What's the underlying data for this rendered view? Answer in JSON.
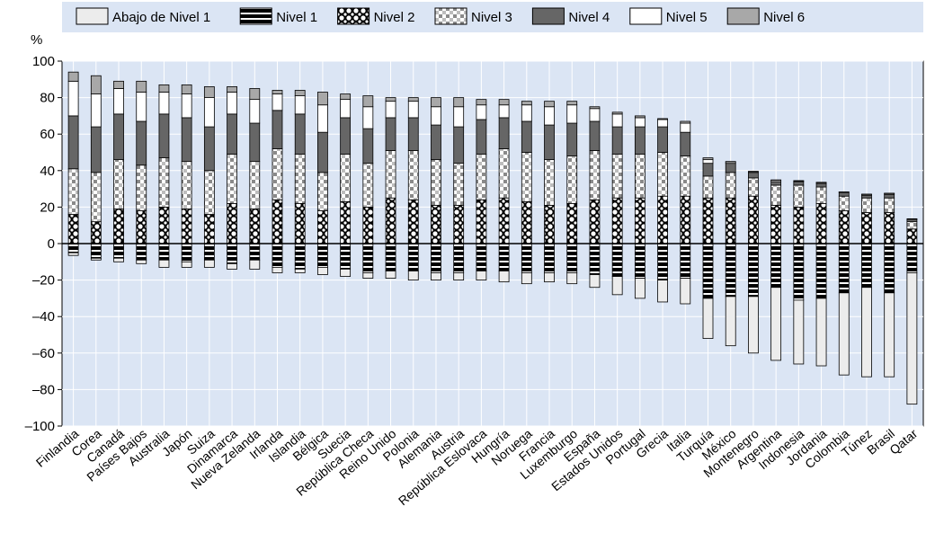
{
  "chart_data": {
    "type": "bar",
    "stacked": "diverging",
    "ylabel": "%",
    "ylim": [
      -100,
      100
    ],
    "yticks": [
      100,
      80,
      60,
      40,
      20,
      0,
      -20,
      -40,
      -60,
      -80,
      -100
    ],
    "grid": true,
    "legend_position": "top",
    "legend": [
      {
        "key": "below1",
        "label": "Abajo de Nivel 1",
        "pattern": "light-gray"
      },
      {
        "key": "l1",
        "label": "Nivel 1",
        "pattern": "black-white-stripes"
      },
      {
        "key": "l2",
        "label": "Nivel 2",
        "pattern": "black-white-circles"
      },
      {
        "key": "l3",
        "label": "Nivel 3",
        "pattern": "white-gray-checker"
      },
      {
        "key": "l4",
        "label": "Nivel 4",
        "pattern": "dark-gray"
      },
      {
        "key": "l5",
        "label": "Nivel 5",
        "pattern": "white"
      },
      {
        "key": "l6",
        "label": "Nivel 6",
        "pattern": "medium-gray"
      }
    ],
    "categories": [
      "Finlandia",
      "Corea",
      "Canadá",
      "Países Bajos",
      "Australia",
      "Japón",
      "Suiza",
      "Dinamarca",
      "Nueva Zelanda",
      "Irlanda",
      "Islandia",
      "Bélgica",
      "Suecia",
      "República Checa",
      "Reino Unido",
      "Polonia",
      "Alemania",
      "Austria",
      "República Eslovaca",
      "Hungría",
      "Noruega",
      "Francia",
      "Luxemburgo",
      "España",
      "Estados Unidos",
      "Portugal",
      "Grecia",
      "Italia",
      "Turquía",
      "México",
      "Montenegro",
      "Argentina",
      "Indonesia",
      "Jordania",
      "Colombia",
      "Túnez",
      "Brasil",
      "Qatar"
    ],
    "series": [
      {
        "key": "below1",
        "values": [
          -1.5,
          -1,
          -2,
          -2,
          -4,
          -3,
          -4,
          -3,
          -5,
          -3,
          -2,
          -4,
          -4,
          -3,
          -4,
          -5,
          -4,
          -4,
          -5,
          -6,
          -6,
          -5,
          -6,
          -7,
          -10,
          -11,
          -12,
          -14,
          -22,
          -27,
          -31,
          -40,
          -35,
          -37,
          -45,
          -49,
          -46,
          -72
        ]
      },
      {
        "key": "l1",
        "values": [
          -5,
          -8,
          -8,
          -9,
          -9,
          -10,
          -9,
          -11,
          -9,
          -13,
          -14,
          -13,
          -14,
          -16,
          -15,
          -15,
          -16,
          -16,
          -15,
          -15,
          -16,
          -16,
          -16,
          -17,
          -18,
          -19,
          -20,
          -19,
          -30,
          -29,
          -29,
          -24,
          -31,
          -30,
          -27,
          -24,
          -27,
          -16
        ]
      },
      {
        "key": "l2",
        "values": [
          16,
          12,
          19,
          18,
          20,
          19,
          16,
          22,
          19,
          24,
          22,
          18,
          23,
          20,
          25,
          24,
          21,
          21,
          24,
          25,
          23,
          21,
          22,
          24,
          25,
          25,
          26,
          26,
          25,
          25,
          26,
          21,
          20,
          22,
          18,
          17,
          17,
          8
        ]
      },
      {
        "key": "l3",
        "values": [
          25,
          27,
          27,
          25,
          27,
          26,
          24,
          27,
          26,
          28,
          27,
          21,
          26,
          24,
          26,
          27,
          25,
          23,
          25,
          27,
          27,
          25,
          26,
          27,
          24,
          24,
          24,
          22,
          12,
          14,
          10,
          11,
          12,
          9,
          8,
          8,
          8,
          4
        ]
      },
      {
        "key": "l4",
        "values": [
          29,
          25,
          25,
          24,
          24,
          24,
          24,
          22,
          21,
          21,
          22,
          22,
          20,
          19,
          18,
          18,
          19,
          20,
          19,
          17,
          17,
          19,
          18,
          16,
          15,
          15,
          14,
          13,
          7,
          5,
          3,
          2,
          2,
          2,
          2,
          1.5,
          2,
          1
        ]
      },
      {
        "key": "l5",
        "values": [
          19,
          18,
          14,
          16,
          12,
          13,
          16,
          12,
          13,
          9,
          10,
          15,
          10,
          12,
          9,
          9,
          10,
          11,
          8,
          7,
          9,
          10,
          10,
          7,
          7,
          5,
          4,
          5,
          2,
          0.8,
          0.5,
          0.8,
          0.4,
          0.5,
          0.2,
          0.5,
          0.5,
          0.5
        ]
      },
      {
        "key": "l6",
        "values": [
          5,
          10,
          4,
          6,
          4,
          5,
          6,
          3,
          6,
          2,
          3,
          7,
          3,
          6,
          2,
          2,
          5,
          5,
          3,
          3,
          2,
          3,
          2,
          1,
          1,
          1,
          0.5,
          1,
          1,
          0.2,
          0.1,
          0.1,
          0.1,
          0.1,
          0.1,
          0.1,
          0.1,
          0.1
        ]
      }
    ]
  }
}
